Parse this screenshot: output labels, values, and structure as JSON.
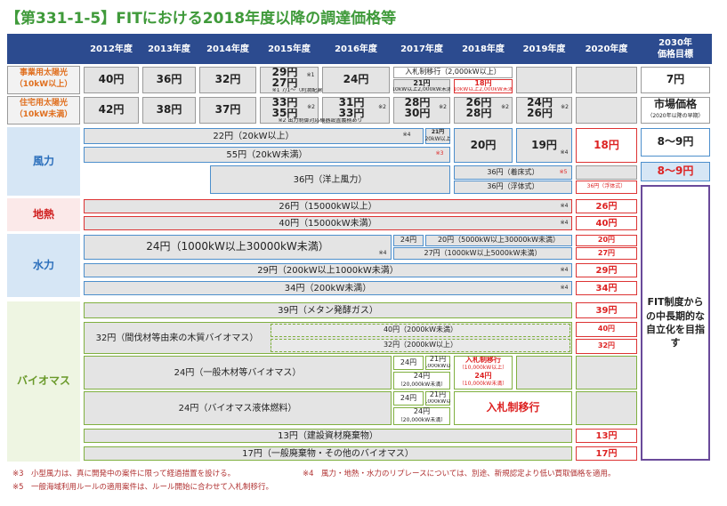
{
  "title": "【第331-1-5】FITにおける2018年度以降の調達価格等",
  "header": {
    "years": [
      "2012年度",
      "2013年度",
      "2014年度",
      "2015年度",
      "2016年度",
      "2017年度",
      "2018年度",
      "2019年度",
      "2020年度"
    ],
    "target": [
      "2030年",
      "価格目標"
    ]
  },
  "solar_business": {
    "label": [
      "事業用太陽光",
      "（10kW以上）"
    ],
    "cells": [
      "40円",
      "36円",
      "32円",
      "29円",
      "27円",
      "※1",
      "※1 7/1～（利潤配慮期間終了後）",
      "24円",
      "入札制移行（2,000kW以上）",
      "21円",
      "（10kW以上2,000kW未満）",
      "18円",
      "（10kW以上2,000kW未満）",
      "7円"
    ]
  },
  "solar_residential": {
    "label": [
      "住宅用太陽光",
      "（10kW未満）"
    ],
    "cells": [
      "42円",
      "38円",
      "37円",
      "33円",
      "35円",
      "※2",
      "31円",
      "33円",
      "※2",
      "28円",
      "30円",
      "※2",
      "26円",
      "28円",
      "※2",
      "24円",
      "26円",
      "※2",
      "※2 出力制御対応機器設置義務あり",
      "市場価格",
      "（2020年以降の早期）"
    ]
  },
  "wind": {
    "label": "風力",
    "cells": [
      "22円（20kW以上）",
      "※4",
      "21円",
      "（20kW以上）",
      "20円",
      "19円",
      "※4",
      "18円",
      "8～9円",
      "55円（20kW未満）",
      "※3",
      "36円（洋上風力）",
      "36円（着床式）",
      "※5",
      "36円（浮体式）",
      "36円（浮体式）",
      "8～9円"
    ]
  },
  "geothermal": {
    "label": "地熱",
    "cells": [
      "26円（15000kW以上）",
      "※4",
      "26円",
      "40円（15000kW未満）",
      "※4",
      "40円"
    ]
  },
  "hydro": {
    "label": "水力",
    "cells": [
      "24円（1000kW以上30000kW未満）",
      "※4",
      "24円",
      "20円（5000kW以上30000kW未満）",
      "27円（1000kW以上5000kW未満）",
      "20円",
      "27円",
      "29円（200kW以上1000kW未満）",
      "※4",
      "29円",
      "34円（200kW未満）",
      "※4",
      "34円"
    ]
  },
  "target_note": "FIT制度からの中長期的な自立化を目指す",
  "biomass": {
    "label": "バイオマス",
    "cells": [
      "39円（メタン発酵ガス）",
      "39円",
      "32円（間伐材等由来の木質バイオマス）",
      "40円（2000kW未満）",
      "32円（2000kW以上）",
      "40円",
      "32円",
      "24円（一般木材等バイオマス）",
      "24円",
      "21円",
      "（20,000kW以上）",
      "24円",
      "（20,000kW未満）",
      "入札制移行",
      "（10,000kW以上）",
      "24円",
      "（10,000kW未満）",
      "24円（バイオマス液体燃料）",
      "24円",
      "21円",
      "（20,000kW以上）",
      "24円",
      "（20,000kW未満）",
      "入札制移行",
      "13円（建設資材廃棄物）",
      "13円",
      "17円（一般廃棄物・その他のバイオマス）",
      "17円"
    ]
  },
  "footnotes": [
    "※3　小型風力は、真に開発中の案件に限って経過措置を設ける。",
    "※4　風力・地熱・水力のリプレースについては、別途、新規認定より低い買取価格を適用。",
    "※5　一般海域利用ルールの適用案件は、ルール開始に合わせて入札制移行。"
  ]
}
